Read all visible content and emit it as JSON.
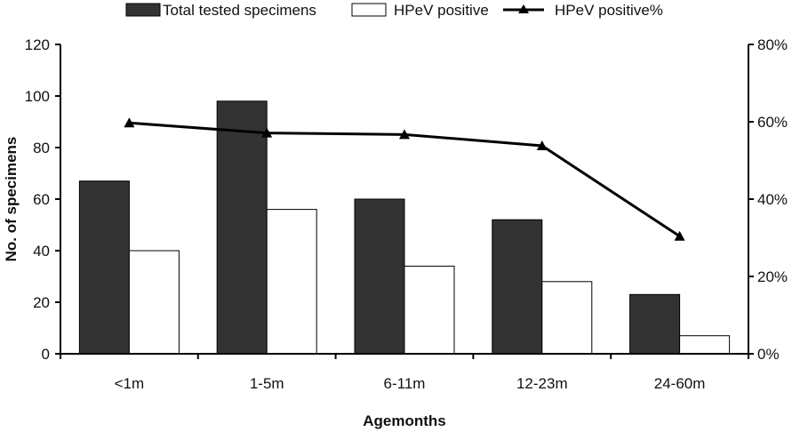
{
  "chart_data": {
    "type": "bar",
    "categories": [
      "<1m",
      "1-5m",
      "6-11m",
      "12-23m",
      "24-60m"
    ],
    "series": [
      {
        "name": "Total tested specimens",
        "kind": "bar",
        "axis": "left",
        "color": "#333333",
        "values": [
          67,
          98,
          60,
          52,
          23
        ]
      },
      {
        "name": "HPeV positive",
        "kind": "bar",
        "axis": "left",
        "color": "#ffffff",
        "values": [
          40,
          56,
          34,
          28,
          7
        ]
      },
      {
        "name": "HPeV positive%",
        "kind": "line",
        "axis": "right",
        "marker": "triangle",
        "color": "#000000",
        "values": [
          59.7,
          57.1,
          56.7,
          53.8,
          30.4
        ]
      }
    ],
    "xlabel": "Agemonths",
    "ylabel": "No. of specimens",
    "ylim": [
      0,
      120
    ],
    "yticks": [
      0,
      20,
      40,
      60,
      80,
      100,
      120
    ],
    "y2lim": [
      0,
      80
    ],
    "y2ticks": [
      "0%",
      "20%",
      "40%",
      "60%",
      "80%"
    ],
    "y2tick_values": [
      0,
      20,
      40,
      60,
      80
    ],
    "legend_position": "top",
    "grid": false
  }
}
